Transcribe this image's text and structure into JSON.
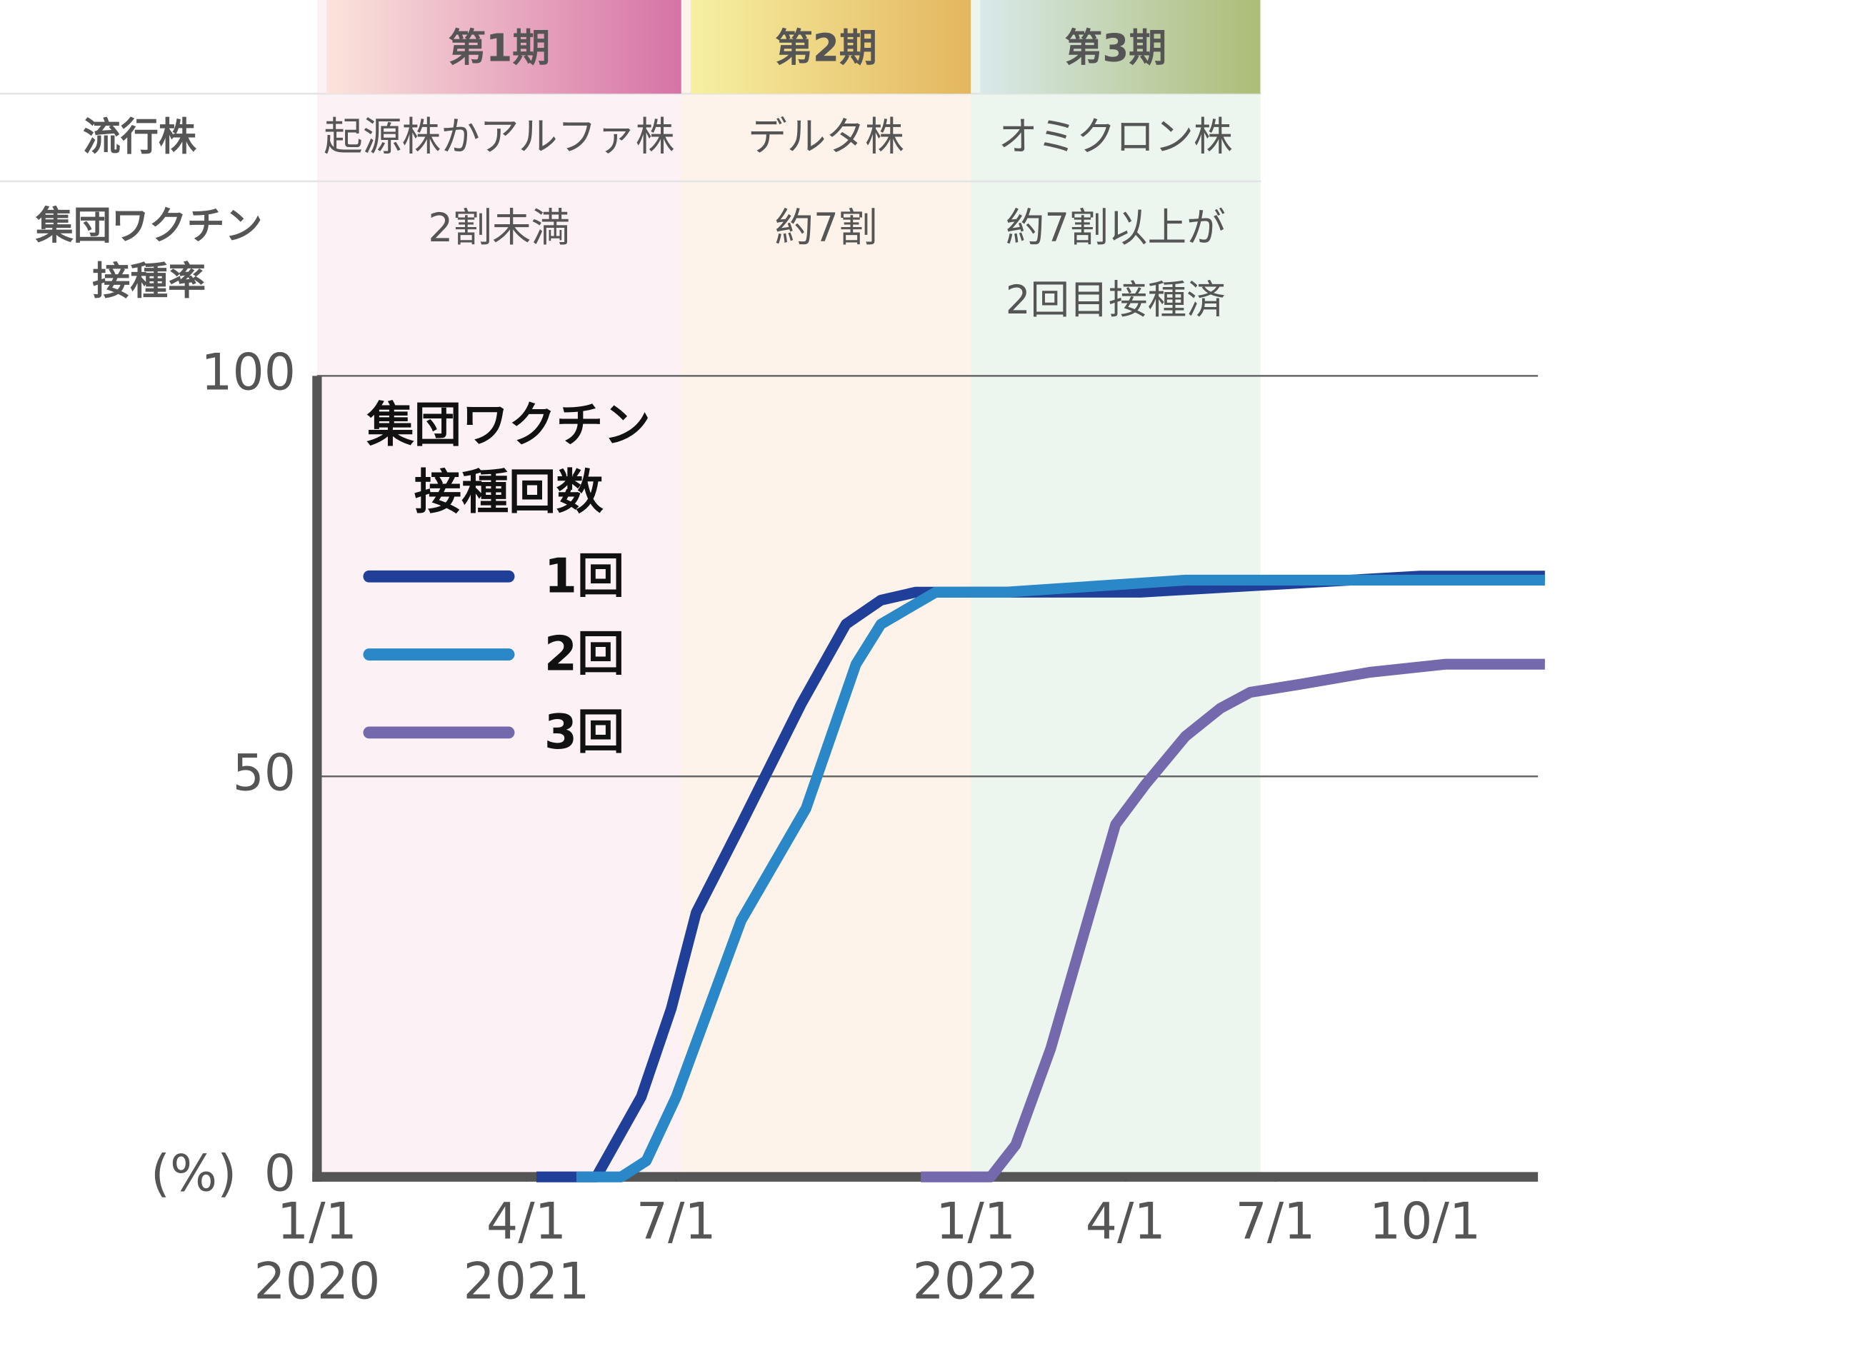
{
  "chart_data": {
    "type": "line",
    "row_labels": [
      "流行株",
      "集団ワクチン\n接種率"
    ],
    "periods": [
      {
        "name": "第1期",
        "strain": "起源株かアルファ株",
        "vaccination": "2割未満",
        "start": 0,
        "end": 18.1,
        "color": "#fcf1f5",
        "header_colors": [
          "#fbe4dc",
          "#d673a6"
        ]
      },
      {
        "name": "第2期",
        "strain": "デルタ株",
        "vaccination": "約7割",
        "start": 18.1,
        "end": 23.9,
        "color": "#fdf3ea",
        "header_colors": [
          "#f6f0a2",
          "#e4b65f"
        ]
      },
      {
        "name": "第3期",
        "strain": "オミクロン株",
        "vaccination": "約7割以上が\n2回目接種済",
        "start": 23.9,
        "end": 29.7,
        "color": "#ecf5ee",
        "header_colors": [
          "#d9e9ea",
          "#acbd76"
        ]
      }
    ],
    "y_unit": "(%)",
    "legend_title": "集団ワクチン\n接種回数",
    "xlim": [
      0,
      35.4
    ],
    "xticks": [
      {
        "value": 0,
        "label": "1/1\n2020"
      },
      {
        "value": 15,
        "label": "4/1\n2021"
      },
      {
        "value": 18,
        "label": "7/1"
      },
      {
        "value": 24,
        "label": "1/1\n2022"
      },
      {
        "value": 27,
        "label": "4/1"
      },
      {
        "value": 30,
        "label": "7/1"
      },
      {
        "value": 33,
        "label": "10/1"
      }
    ],
    "ylim": [
      0,
      100
    ],
    "yticks": [
      0,
      50,
      100
    ],
    "grid": true,
    "series": [
      {
        "name": "1回",
        "color": "#1f3f99",
        "x": [
          15.2,
          16.4,
          17.3,
          17.9,
          18.4,
          19.3,
          20.5,
          21.4,
          22.1,
          22.8,
          27.3,
          32.9,
          35.4
        ],
        "values": [
          0,
          0,
          10,
          21,
          33,
          44,
          59,
          69,
          72,
          73,
          73,
          75,
          75
        ]
      },
      {
        "name": "2回",
        "color": "#2a88c8",
        "x": [
          16.0,
          16.9,
          17.4,
          18.0,
          19.3,
          20.6,
          21.6,
          22.1,
          23.2,
          24.6,
          28.2,
          35.4
        ],
        "values": [
          0,
          0,
          2,
          10,
          32,
          46,
          64,
          69,
          73,
          73,
          74.5,
          74.5
        ]
      },
      {
        "name": "3回",
        "color": "#7469ad",
        "x": [
          22.9,
          24.3,
          24.8,
          25.5,
          26.8,
          27.4,
          28.2,
          28.9,
          29.5,
          30.5,
          31.9,
          33.4,
          35.4
        ],
        "values": [
          0,
          0,
          4,
          16,
          44,
          49,
          55,
          58.5,
          60.5,
          61.5,
          63,
          64,
          64
        ]
      }
    ]
  }
}
